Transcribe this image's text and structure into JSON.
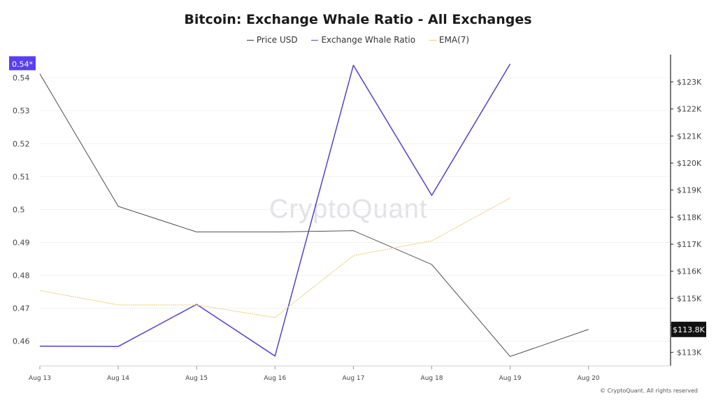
{
  "chart_data": {
    "type": "line",
    "title": "Bitcoin: Exchange Whale Ratio - All Exchanges",
    "categories": [
      "Aug 13",
      "Aug 14",
      "Aug 15",
      "Aug 16",
      "Aug 17",
      "Aug 18",
      "Aug 19",
      "Aug 20"
    ],
    "series": [
      {
        "name": "Price USD",
        "axis": "right",
        "color": "#3a3a3a",
        "values": [
          123300,
          118400,
          117450,
          117450,
          117500,
          116250,
          112850,
          113850
        ]
      },
      {
        "name": "Exchange Whale Ratio",
        "axis": "left",
        "color": "#5243c8",
        "values": [
          0.4585,
          0.4584,
          0.4712,
          0.4555,
          0.5438,
          0.5043,
          0.5442,
          null
        ]
      },
      {
        "name": "EMA(7)",
        "axis": "left",
        "color": "#e8c96a",
        "values": [
          0.4754,
          0.471,
          0.471,
          0.4672,
          0.486,
          0.4905,
          0.5035,
          null
        ]
      }
    ],
    "y_left": {
      "ticks": [
        "0.46",
        "0.47",
        "0.48",
        "0.49",
        "0.5",
        "0.51",
        "0.52",
        "0.53",
        "0.54"
      ],
      "min": 0.4525,
      "max": 0.5445
    },
    "y_right": {
      "ticks": [
        "$113K",
        "$114K",
        "$115K",
        "$116K",
        "$117K",
        "$118K",
        "$119K",
        "$120K",
        "$121K",
        "$122K",
        "$123K"
      ],
      "min": 112500,
      "max": 123700
    },
    "left_badge": "0.54*",
    "right_badge": "$113.8K",
    "left_badge_value": 0.5442,
    "right_badge_value": 113850,
    "legend_position": "top-center"
  },
  "legend": [
    {
      "label": "Price USD",
      "color": "#3a3a3a"
    },
    {
      "label": "Exchange Whale Ratio",
      "color": "#5243c8"
    },
    {
      "label": "EMA(7)",
      "color": "#e8c96a"
    }
  ],
  "watermark": "CryptoQuant",
  "copyright": "© CryptoQuant. All rights reserved"
}
